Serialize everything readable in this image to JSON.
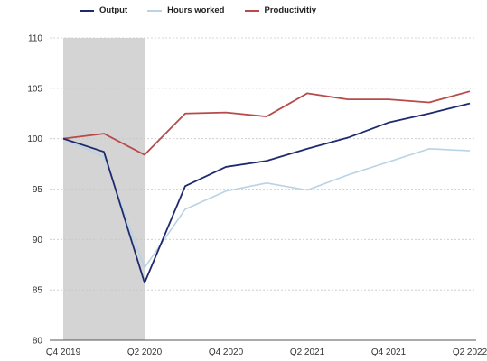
{
  "chart_data": {
    "type": "line",
    "title": "",
    "xlabel": "",
    "ylabel": "",
    "ylim": [
      80,
      110
    ],
    "yticks": [
      80,
      85,
      90,
      95,
      100,
      105,
      110
    ],
    "x": [
      "Q4 2019",
      "Q1 2020",
      "Q2 2020",
      "Q3 2020",
      "Q4 2020",
      "Q1 2021",
      "Q2 2021",
      "Q3 2021",
      "Q4 2021",
      "Q1 2022",
      "Q2 2022"
    ],
    "xtick_labels": [
      "Q4 2019",
      "Q2 2020",
      "Q4 2020",
      "Q2 2021",
      "Q4 2021",
      "Q2 2022"
    ],
    "shaded_range": [
      "Q4 2019",
      "Q2 2020"
    ],
    "grid": "horizontal dotted",
    "legend": "top",
    "series": [
      {
        "name": "Output",
        "color": "#1f2a6e",
        "values": [
          100.0,
          98.7,
          85.7,
          95.3,
          97.2,
          97.8,
          99.0,
          100.1,
          101.6,
          102.5,
          103.5
        ]
      },
      {
        "name": "Hours worked",
        "color": "#b9d3e6",
        "values": [
          100.0,
          98.2,
          87.2,
          93.0,
          94.8,
          95.6,
          94.9,
          96.4,
          97.7,
          99.0,
          98.8
        ]
      },
      {
        "name": "Productivitiy",
        "color": "#b84a4a",
        "values": [
          100.0,
          100.5,
          98.4,
          102.5,
          102.6,
          102.2,
          104.5,
          103.9,
          103.9,
          103.6,
          104.7
        ]
      }
    ]
  }
}
